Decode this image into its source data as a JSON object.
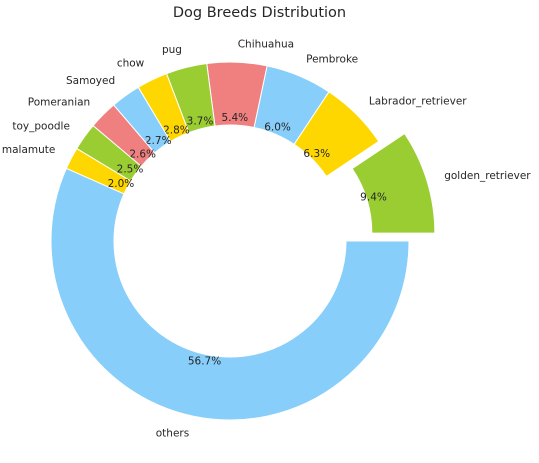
{
  "chart_data": {
    "type": "pie",
    "title": "Dog Breeds Distribution",
    "donut": true,
    "start_angle_deg": 0,
    "direction": "counterclockwise",
    "exploded_category": "golden_retriever",
    "slices": [
      {
        "label": "golden_retriever",
        "value": 9.4,
        "pct_label": "9.4%",
        "color": "#9ACD32"
      },
      {
        "label": "Labrador_retriever",
        "value": 6.3,
        "pct_label": "6.3%",
        "color": "#FFD700"
      },
      {
        "label": "Pembroke",
        "value": 6.0,
        "pct_label": "6.0%",
        "color": "#87CEFA"
      },
      {
        "label": "Chihuahua",
        "value": 5.4,
        "pct_label": "5.4%",
        "color": "#F08080"
      },
      {
        "label": "pug",
        "value": 3.7,
        "pct_label": "3.7%",
        "color": "#9ACD32"
      },
      {
        "label": "chow",
        "value": 2.8,
        "pct_label": "2.8%",
        "color": "#FFD700"
      },
      {
        "label": "Samoyed",
        "value": 2.7,
        "pct_label": "2.7%",
        "color": "#87CEFA"
      },
      {
        "label": "Pomeranian",
        "value": 2.6,
        "pct_label": "2.6%",
        "color": "#F08080"
      },
      {
        "label": "toy_poodle",
        "value": 2.5,
        "pct_label": "2.5%",
        "color": "#9ACD32"
      },
      {
        "label": "malamute",
        "value": 2.0,
        "pct_label": "2.0%",
        "color": "#FFD700"
      },
      {
        "label": "others",
        "value": 56.7,
        "pct_label": "56.7%",
        "color": "#87CEFA"
      }
    ]
  }
}
